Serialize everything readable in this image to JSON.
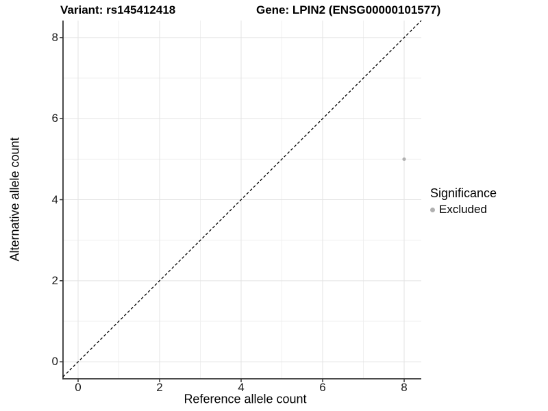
{
  "titles": {
    "variant": "Variant: rs145412418",
    "gene": "Gene: LPIN2 (ENSG00000101577)"
  },
  "legend": {
    "title": "Significance",
    "items": [
      {
        "label": "Excluded",
        "color": "#b0b0b0"
      }
    ]
  },
  "chart_data": {
    "type": "scatter",
    "title": "Variant: rs145412418  |  Gene: LPIN2 (ENSG00000101577)",
    "xlabel": "Reference allele count",
    "ylabel": "Alternative allele count",
    "xlim": [
      -0.37,
      8.42
    ],
    "ylim": [
      -0.42,
      8.42
    ],
    "x_ticks": [
      0,
      2,
      4,
      6,
      8
    ],
    "y_ticks": [
      0,
      2,
      4,
      6,
      8
    ],
    "x_minor_ticks": [
      1,
      3,
      5,
      7
    ],
    "y_minor_ticks": [
      1,
      3,
      5,
      7
    ],
    "grid": true,
    "legend_position": "right",
    "reference_line": {
      "type": "identity",
      "style": "dashed",
      "color": "#000000"
    },
    "series": [
      {
        "name": "Excluded",
        "color": "#b0b0b0",
        "points": [
          {
            "x": 8,
            "y": 5
          }
        ]
      }
    ],
    "colors": {
      "grid_major": "#e3e3e3",
      "grid_minor": "#efefef",
      "axis_line": "#333333",
      "point": "#b0b0b0"
    }
  }
}
